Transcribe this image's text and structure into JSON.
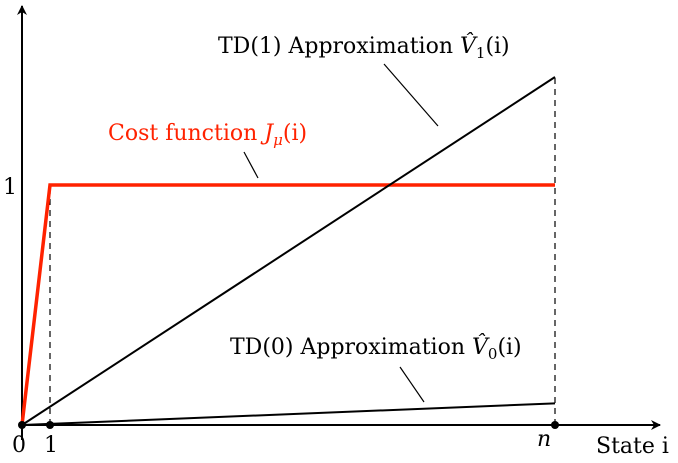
{
  "chart_data": {
    "type": "line",
    "title": "",
    "xlabel": "State i",
    "ylabel": "",
    "x_ticks": [
      "0",
      "1",
      "n"
    ],
    "y_ticks": [
      "1"
    ],
    "series": [
      {
        "name": "Cost function J_μ(i)",
        "label_parts": [
          "Cost function ",
          "J",
          "μ",
          "(i)"
        ],
        "color": "#ff2200",
        "points": [
          [
            "0",
            0
          ],
          [
            "1",
            1
          ],
          [
            "n",
            1
          ]
        ]
      },
      {
        "name": "TD(1) Approximation V̂_1(i)",
        "label_parts": [
          "TD(1) Approximation ",
          "V̂",
          "1",
          "(i)"
        ],
        "color": "#000000",
        "points": [
          [
            "0",
            0
          ],
          [
            "n",
            1.45
          ]
        ]
      },
      {
        "name": "TD(0) Approximation V̂_0(i)",
        "label_parts": [
          "TD(0) Approximation ",
          "V̂",
          "0",
          "(i)"
        ],
        "color": "#000000",
        "points": [
          [
            "0",
            0
          ],
          [
            "n",
            0.09
          ]
        ]
      }
    ],
    "reference_lines": [
      {
        "type": "vertical",
        "at": "1",
        "style": "dashed"
      },
      {
        "type": "vertical",
        "at": "n",
        "style": "dashed"
      }
    ],
    "grid": false,
    "legend": "none"
  }
}
